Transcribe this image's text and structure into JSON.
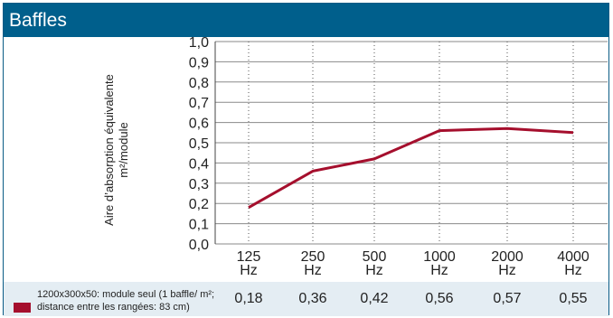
{
  "header": {
    "title": "Baffles"
  },
  "chart_data": {
    "type": "line",
    "ylabel_line1": "Aire d’absorption équivalente",
    "ylabel_line2": "m²/module",
    "ylim": [
      0,
      1.0
    ],
    "yticks": [
      "0,0",
      "0,1",
      "0,2",
      "0,3",
      "0,4",
      "0,5",
      "0,6",
      "0,7",
      "0,8",
      "0,9",
      "1,0"
    ],
    "categories": [
      "125",
      "250",
      "500",
      "1000",
      "2000",
      "4000"
    ],
    "unit": "Hz",
    "series": [
      {
        "name": "1200x300x50: module seul (1 baffle/ m²; distance entre les rangées: 83 cm)",
        "values": [
          0.18,
          0.36,
          0.42,
          0.56,
          0.57,
          0.55
        ],
        "color": "#a50f2d"
      }
    ],
    "value_labels": [
      "0,18",
      "0,36",
      "0,42",
      "0,56",
      "0,57",
      "0,55"
    ],
    "grid": true
  }
}
